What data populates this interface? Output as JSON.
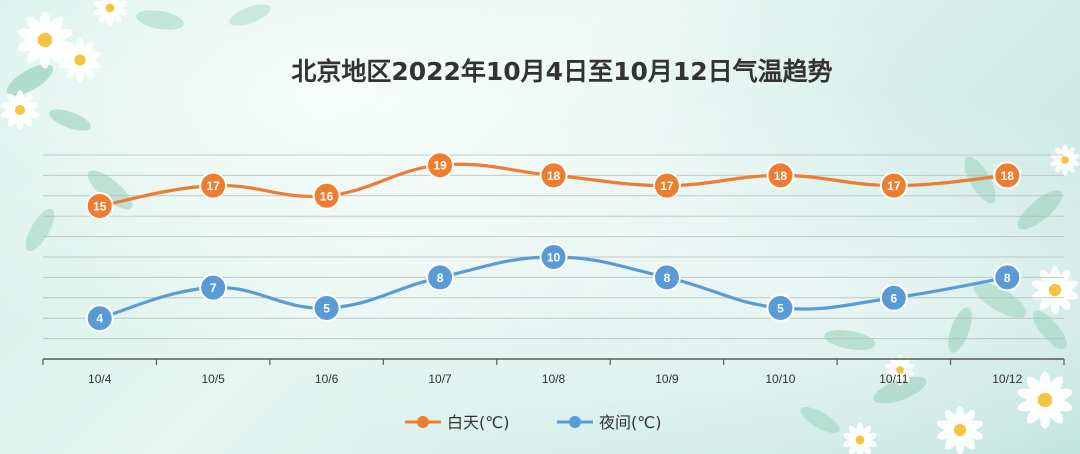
{
  "chart_data": {
    "type": "line",
    "title": "北京地区2022年10月4日至10月12日气温趋势",
    "categories": [
      "10/4",
      "10/5",
      "10/6",
      "10/7",
      "10/8",
      "10/9",
      "10/10",
      "10/11",
      "10/12"
    ],
    "series": [
      {
        "name": "白天(℃)",
        "color": "#ED7D31",
        "values": [
          15,
          17,
          16,
          19,
          18,
          17,
          18,
          17,
          18
        ]
      },
      {
        "name": "夜间(℃)",
        "color": "#5B9BD5",
        "values": [
          4,
          7,
          5,
          8,
          10,
          8,
          5,
          6,
          8
        ]
      }
    ],
    "ylim": [
      0,
      20
    ],
    "smooth": true,
    "data_labels": true,
    "grid": true,
    "legend": "bottom",
    "xlabel": "",
    "ylabel": ""
  }
}
